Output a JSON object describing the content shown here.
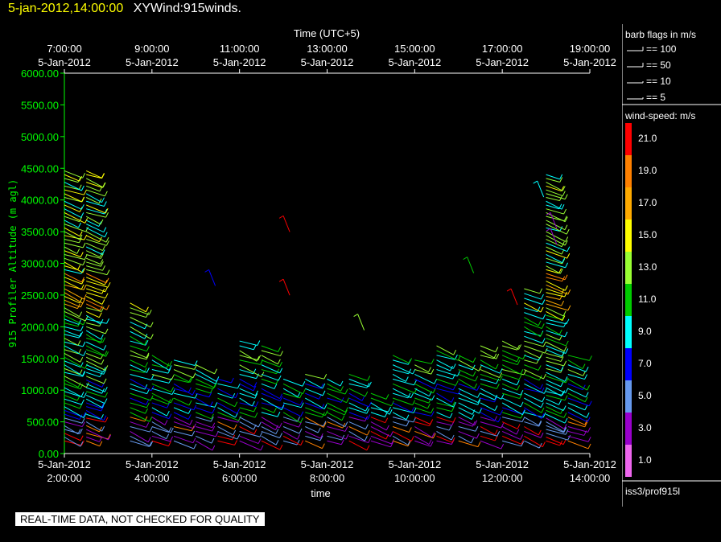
{
  "header": {
    "datetime": "5-jan-2012,14:00:00",
    "plot_name": "XYWind:915winds."
  },
  "chart_data": {
    "type": "scatter",
    "title": "5-jan-2012,14:00:00 XYWind:915winds.",
    "xlabel": "time",
    "x2label": "Time (UTC+5)",
    "ylabel": "915 Profiler Altitude (m agl)",
    "ylim": [
      0,
      6000
    ],
    "xlim": [
      "5-Jan-2012 2:00:00",
      "5-Jan-2012 14:00:00"
    ],
    "y_ticks": [
      "0.00",
      "500.00",
      "1000.00",
      "1500.00",
      "2000.00",
      "2500.00",
      "3000.00",
      "3500.00",
      "4000.00",
      "4500.00",
      "5000.00",
      "5500.00",
      "6000.00"
    ],
    "x_ticks_bottom": [
      {
        "date": "5-Jan-2012",
        "time": "2:00:00"
      },
      {
        "date": "5-Jan-2012",
        "time": "4:00:00"
      },
      {
        "date": "5-Jan-2012",
        "time": "6:00:00"
      },
      {
        "date": "5-Jan-2012",
        "time": "8:00:00"
      },
      {
        "date": "5-Jan-2012",
        "time": "10:00:00"
      },
      {
        "date": "5-Jan-2012",
        "time": "12:00:00"
      },
      {
        "date": "5-Jan-2012",
        "time": "14:00:00"
      }
    ],
    "x_ticks_top": [
      {
        "time": "7:00:00",
        "date": "5-Jan-2012"
      },
      {
        "time": "9:00:00",
        "date": "5-Jan-2012"
      },
      {
        "time": "11:00:00",
        "date": "5-Jan-2012"
      },
      {
        "time": "13:00:00",
        "date": "5-Jan-2012"
      },
      {
        "time": "15:00:00",
        "date": "5-Jan-2012"
      },
      {
        "time": "17:00:00",
        "date": "5-Jan-2012"
      },
      {
        "time": "19:00:00",
        "date": "5-Jan-2012"
      }
    ],
    "grid": false,
    "mark": "wind barbs",
    "barb_profile_times": [
      "2:00",
      "2:30",
      "3:30",
      "4:00",
      "4:30",
      "5:00",
      "5:30",
      "6:00",
      "6:30",
      "7:00",
      "7:30",
      "8:00",
      "8:30",
      "9:00",
      "9:30",
      "10:00",
      "10:30",
      "11:00",
      "11:30",
      "12:00",
      "12:30",
      "13:00",
      "13:30"
    ],
    "barb_top_altitude_m": [
      4500,
      4500,
      2400,
      1600,
      1500,
      1400,
      1200,
      1800,
      1700,
      1200,
      1300,
      1200,
      1300,
      1000,
      1600,
      1500,
      1700,
      1600,
      1700,
      1800,
      2600,
      4400,
      1600
    ],
    "colorbar": {
      "label": "wind-speed: m/s",
      "ticks": [
        "21.0",
        "19.0",
        "17.0",
        "15.0",
        "13.0",
        "11.0",
        "9.0",
        "7.0",
        "5.0",
        "3.0",
        "1.0"
      ],
      "colors": [
        "#ff0000",
        "#ff8000",
        "#ffaa00",
        "#ffff00",
        "#99ff33",
        "#00cc00",
        "#00ffff",
        "#0000ff",
        "#6699ee",
        "#9900cc",
        "#ee66ee"
      ]
    },
    "barb_legend": {
      "title": "barb flags in m/s",
      "items": [
        "== 100",
        "== 50",
        "== 10",
        "== 5"
      ]
    },
    "axis_color": "#00ff00",
    "source": "iss3/prof915l"
  },
  "footer": {
    "warning": "REAL-TIME DATA, NOT CHECKED FOR QUALITY"
  }
}
